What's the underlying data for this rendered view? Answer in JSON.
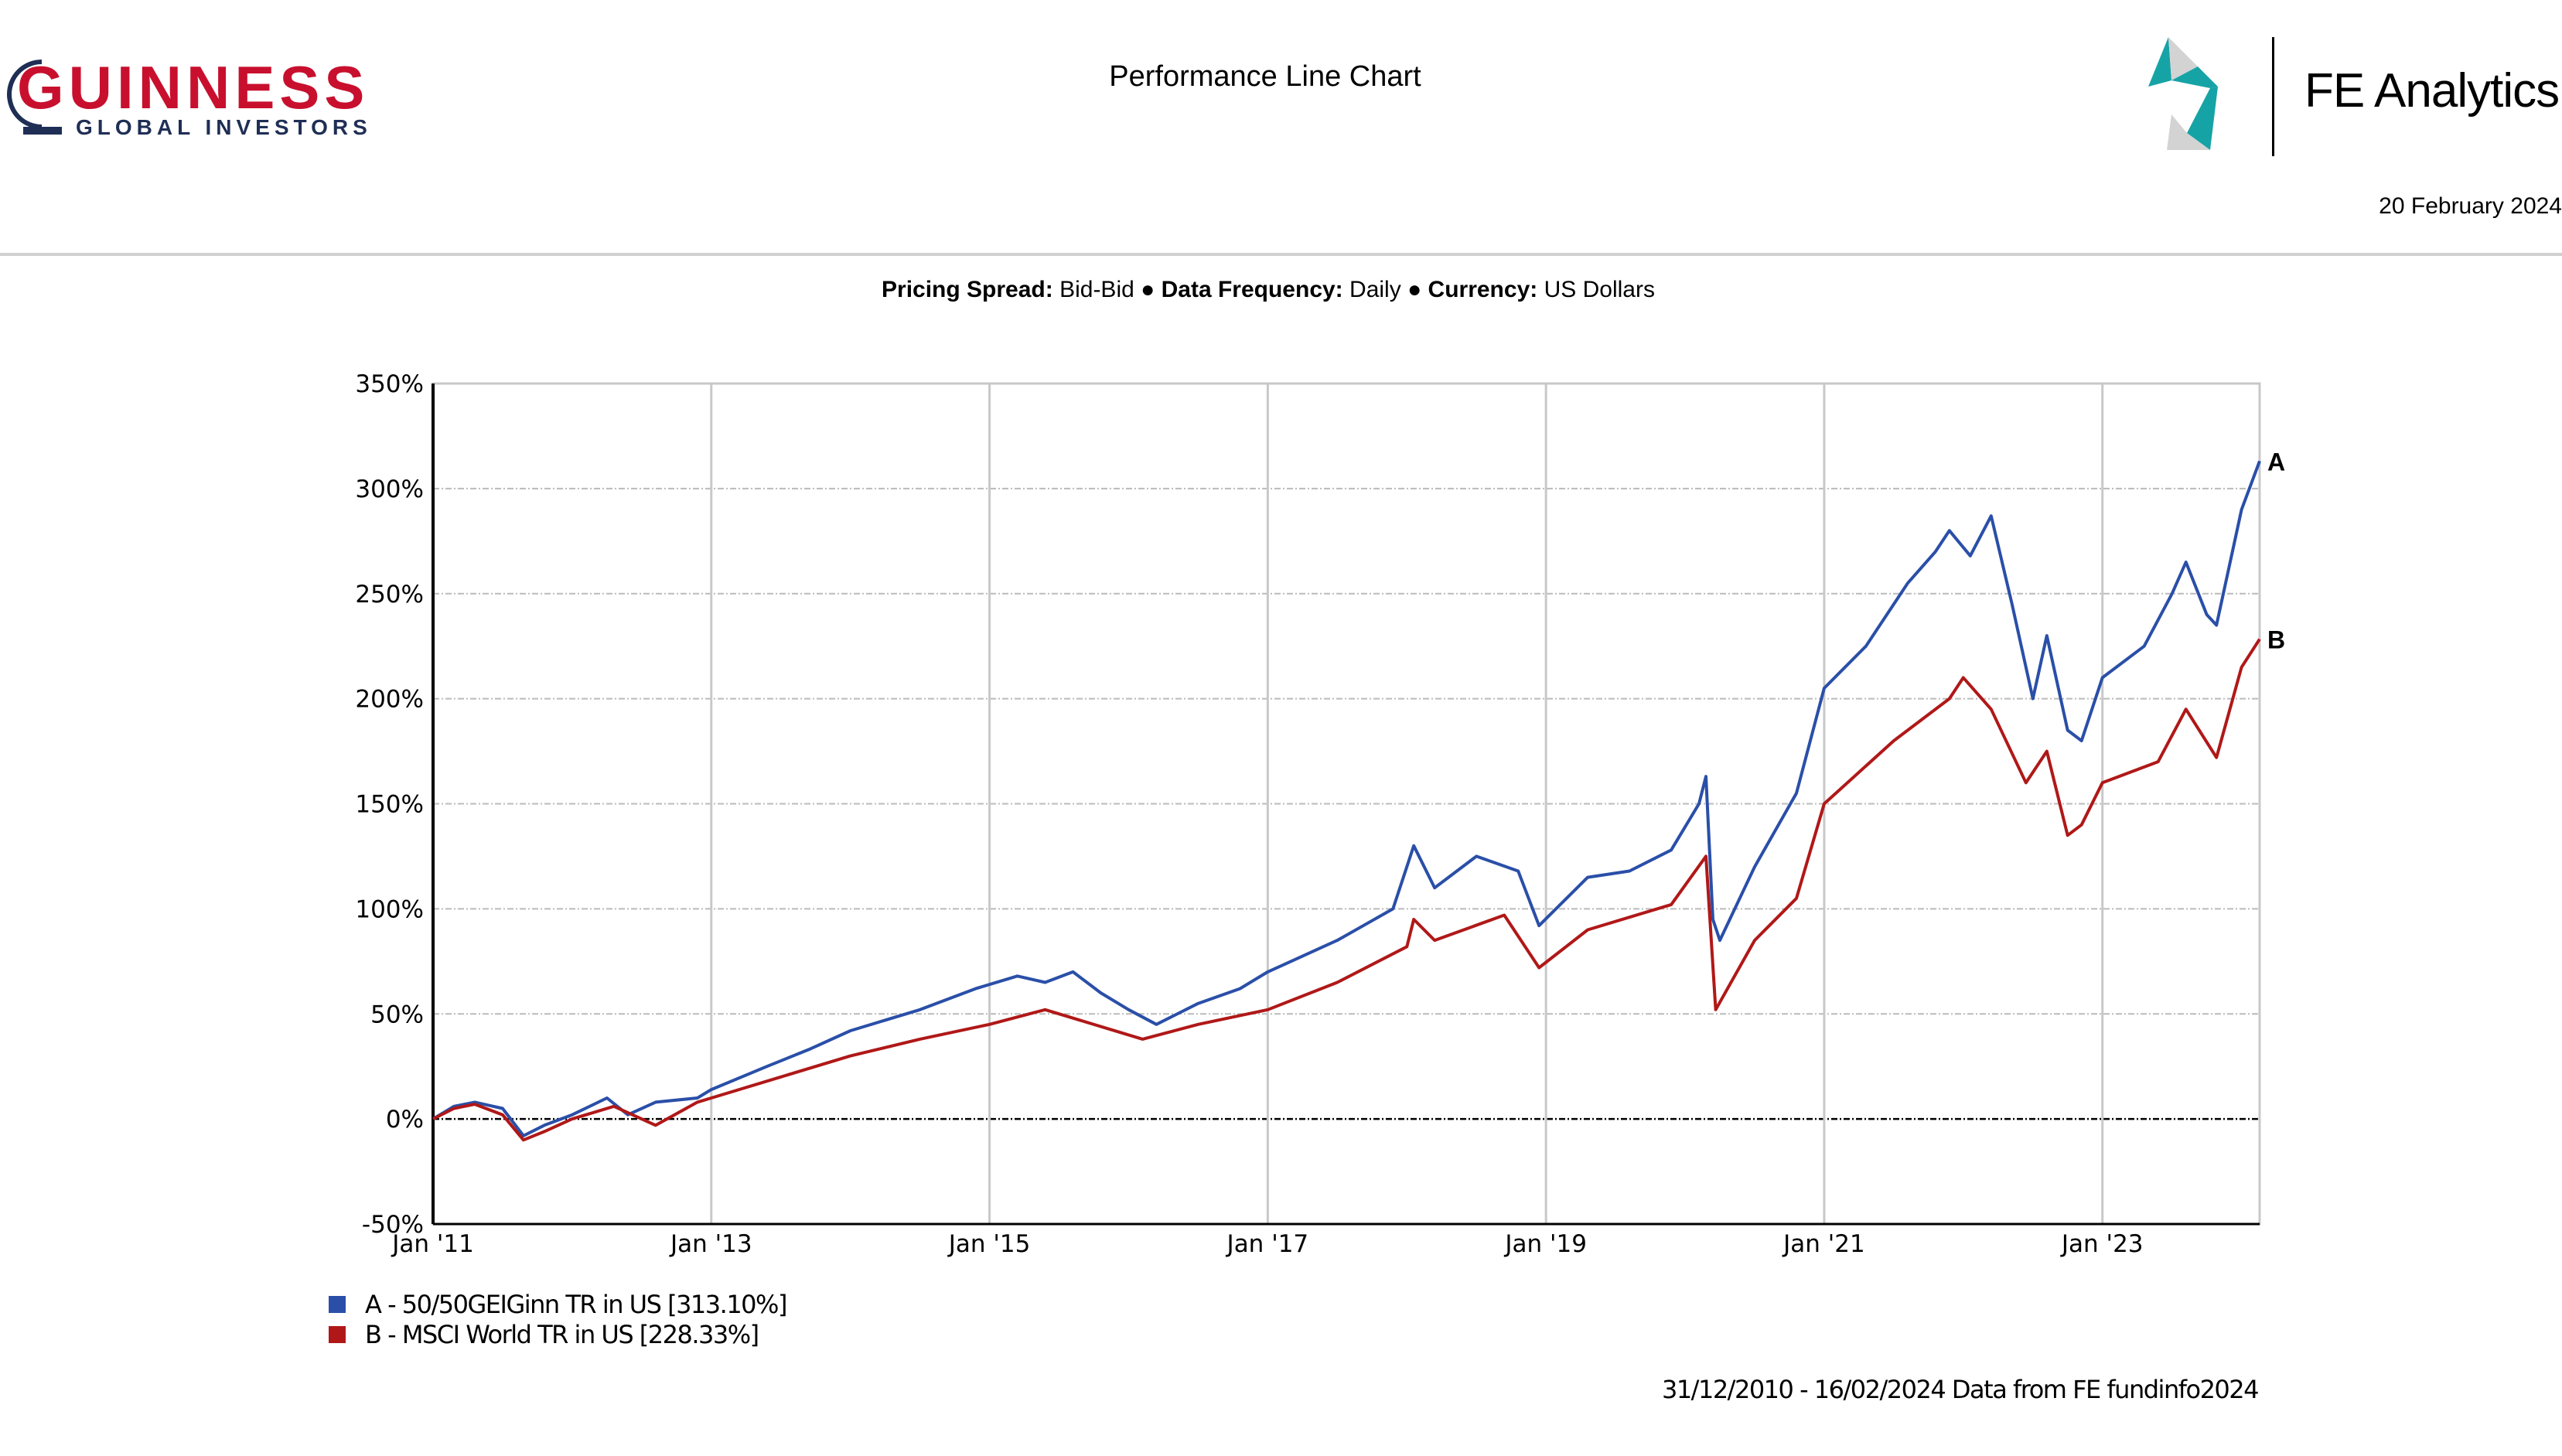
{
  "header": {
    "logo_text": "GUINNESS",
    "logo_subtext": "GLOBAL INVESTORS",
    "title": "Performance Line Chart",
    "brand": "FE Analytics",
    "date": "20 February 2024"
  },
  "subtitle": {
    "spread_label": "Pricing Spread:",
    "spread_value": "Bid-Bid",
    "freq_label": "Data Frequency:",
    "freq_value": "Daily",
    "currency_label": "Currency:",
    "currency_value": "US Dollars",
    "bullet": "●"
  },
  "chart_data": {
    "type": "line",
    "title": "Performance Line Chart",
    "xlabel": "",
    "ylabel": "",
    "xlim": [
      2011.0,
      2024.13
    ],
    "ylim": [
      -50,
      350
    ],
    "grid": true,
    "legend_placement": "bottom-left",
    "y_ticks": [
      "-50%",
      "0%",
      "50%",
      "100%",
      "150%",
      "200%",
      "250%",
      "300%",
      "350%"
    ],
    "y_tick_values": [
      -50,
      0,
      50,
      100,
      150,
      200,
      250,
      300,
      350
    ],
    "x_ticks": [
      "Jan '11",
      "Jan '13",
      "Jan '15",
      "Jan '17",
      "Jan '19",
      "Jan '21",
      "Jan '23"
    ],
    "x_tick_values": [
      2011,
      2013,
      2015,
      2017,
      2019,
      2021,
      2023
    ],
    "series": [
      {
        "name": "A - 50/50GEIGinn TR in US [313.10%]",
        "end_label": "A",
        "color": "#2a4fa8",
        "x": [
          2011.0,
          2011.15,
          2011.3,
          2011.5,
          2011.65,
          2011.8,
          2012.0,
          2012.25,
          2012.4,
          2012.6,
          2012.9,
          2013.0,
          2013.4,
          2013.7,
          2014.0,
          2014.5,
          2014.9,
          2015.2,
          2015.4,
          2015.6,
          2015.8,
          2016.0,
          2016.2,
          2016.5,
          2016.8,
          2017.0,
          2017.5,
          2017.9,
          2018.05,
          2018.2,
          2018.5,
          2018.8,
          2018.95,
          2019.3,
          2019.6,
          2019.9,
          2020.1,
          2020.15,
          2020.2,
          2020.25,
          2020.5,
          2020.8,
          2021.0,
          2021.3,
          2021.6,
          2021.8,
          2021.9,
          2022.05,
          2022.2,
          2022.35,
          2022.5,
          2022.6,
          2022.75,
          2022.85,
          2023.0,
          2023.3,
          2023.5,
          2023.6,
          2023.75,
          2023.82,
          2024.0,
          2024.13
        ],
        "y": [
          0,
          6,
          8,
          5,
          -8,
          -3,
          2,
          10,
          2,
          8,
          10,
          14,
          25,
          33,
          42,
          52,
          62,
          68,
          65,
          70,
          60,
          52,
          45,
          55,
          62,
          70,
          85,
          100,
          130,
          110,
          125,
          118,
          92,
          115,
          118,
          128,
          150,
          163,
          95,
          85,
          120,
          155,
          205,
          225,
          255,
          270,
          280,
          268,
          287,
          245,
          200,
          230,
          185,
          180,
          210,
          225,
          250,
          265,
          240,
          235,
          290,
          313.1
        ]
      },
      {
        "name": "B - MSCI World TR in US [228.33%]",
        "end_label": "B",
        "color": "#b01818",
        "x": [
          2011.0,
          2011.15,
          2011.3,
          2011.5,
          2011.65,
          2011.8,
          2012.0,
          2012.3,
          2012.6,
          2012.9,
          2013.0,
          2013.5,
          2014.0,
          2014.5,
          2015.0,
          2015.4,
          2015.6,
          2016.1,
          2016.5,
          2017.0,
          2017.5,
          2018.0,
          2018.05,
          2018.2,
          2018.7,
          2018.95,
          2019.3,
          2019.9,
          2020.15,
          2020.22,
          2020.5,
          2020.8,
          2021.0,
          2021.5,
          2021.9,
          2022.0,
          2022.2,
          2022.45,
          2022.6,
          2022.75,
          2022.85,
          2023.0,
          2023.4,
          2023.6,
          2023.82,
          2024.0,
          2024.13
        ],
        "y": [
          0,
          5,
          7,
          2,
          -10,
          -6,
          0,
          6,
          -3,
          8,
          10,
          20,
          30,
          38,
          45,
          52,
          48,
          38,
          45,
          52,
          65,
          82,
          95,
          85,
          97,
          72,
          90,
          102,
          125,
          52,
          85,
          105,
          150,
          180,
          200,
          210,
          195,
          160,
          175,
          135,
          140,
          160,
          170,
          195,
          172,
          215,
          228.33
        ]
      }
    ]
  },
  "footnote": "31/12/2010 - 16/02/2024 Data from FE fundinfo2024"
}
